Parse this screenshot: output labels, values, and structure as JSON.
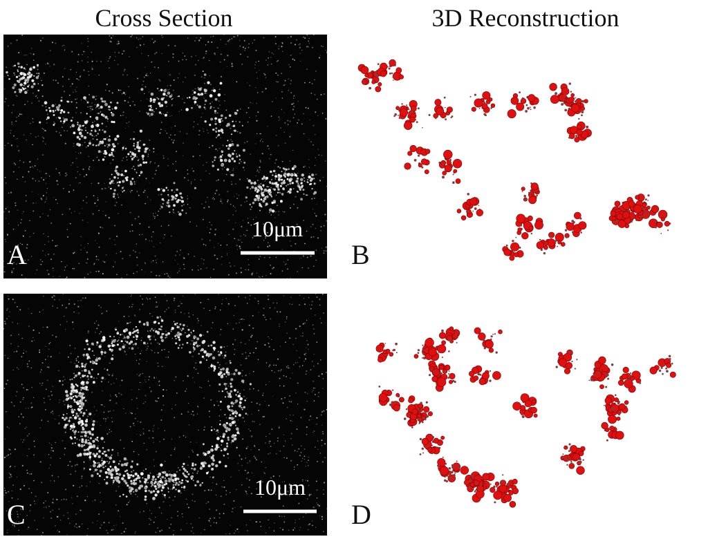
{
  "headers": {
    "left": "Cross Section",
    "right": "3D Reconstruction"
  },
  "panels": [
    {
      "label": "A",
      "scale_bar": "10μm"
    },
    {
      "label": "B"
    },
    {
      "label": "C",
      "scale_bar": "10μm"
    },
    {
      "label": "D"
    }
  ]
}
